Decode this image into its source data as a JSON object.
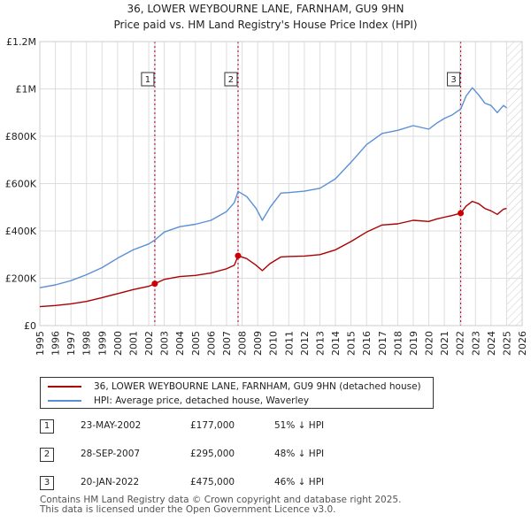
{
  "chart_data": {
    "type": "line",
    "title": "36, LOWER WEYBOURNE LANE, FARNHAM, GU9 9HN",
    "subtitle": "Price paid vs. HM Land Registry's House Price Index (HPI)",
    "xlim": [
      1995,
      2026
    ],
    "ylim": [
      0,
      1200000
    ],
    "x_ticks": [
      1995,
      1996,
      1997,
      1998,
      1999,
      2000,
      2001,
      2002,
      2003,
      2004,
      2005,
      2006,
      2007,
      2008,
      2009,
      2010,
      2011,
      2012,
      2013,
      2014,
      2015,
      2016,
      2017,
      2018,
      2019,
      2020,
      2021,
      2022,
      2023,
      2024,
      2025,
      2026
    ],
    "y_ticks": [
      {
        "value": 0,
        "label": "£0"
      },
      {
        "value": 200000,
        "label": "£200K"
      },
      {
        "value": 400000,
        "label": "£400K"
      },
      {
        "value": 600000,
        "label": "£600K"
      },
      {
        "value": 800000,
        "label": "£800K"
      },
      {
        "value": 1000000,
        "label": "£1M"
      },
      {
        "value": 1200000,
        "label": "£1.2M"
      }
    ],
    "grid": true,
    "shaded_regions": [
      {
        "from": 2002.39,
        "to": 2002.39
      },
      {
        "from": 2007.74,
        "to": 2007.74
      },
      {
        "from": 2022.05,
        "to": 2022.05
      }
    ],
    "future_hatch_from": 2025.0,
    "series": [
      {
        "name": "36, LOWER WEYBOURNE LANE, FARNHAM, GU9 9HN (detached house)",
        "color": "#aa0000",
        "x": [
          1995.0,
          1996.0,
          1997.0,
          1998.0,
          1999.0,
          2000.0,
          2001.0,
          2002.0,
          2002.39,
          2003.0,
          2004.0,
          2005.0,
          2006.0,
          2007.0,
          2007.5,
          2007.74,
          2008.3,
          2008.9,
          2009.3,
          2009.8,
          2010.5,
          2011.0,
          2012.0,
          2013.0,
          2014.0,
          2015.0,
          2016.0,
          2017.0,
          2018.0,
          2019.0,
          2020.0,
          2020.5,
          2021.0,
          2021.5,
          2022.05,
          2022.4,
          2022.8,
          2023.2,
          2023.6,
          2024.0,
          2024.4,
          2024.8,
          2025.0
        ],
        "y": [
          80000,
          85000,
          92000,
          102000,
          118000,
          135000,
          152000,
          166000,
          177000,
          195000,
          207000,
          212000,
          222000,
          240000,
          255000,
          295000,
          283000,
          255000,
          232000,
          262000,
          290000,
          292000,
          294000,
          300000,
          320000,
          355000,
          395000,
          425000,
          430000,
          445000,
          440000,
          450000,
          458000,
          465000,
          475000,
          505000,
          525000,
          515000,
          495000,
          485000,
          470000,
          492000,
          495000
        ]
      },
      {
        "name": "HPI: Average price, detached house, Waverley",
        "color": "#5b8fd4",
        "x": [
          1995.0,
          1996.0,
          1997.0,
          1998.0,
          1999.0,
          2000.0,
          2001.0,
          2002.0,
          2002.39,
          2003.0,
          2004.0,
          2005.0,
          2006.0,
          2007.0,
          2007.5,
          2007.74,
          2008.3,
          2008.9,
          2009.3,
          2009.8,
          2010.5,
          2011.0,
          2012.0,
          2013.0,
          2014.0,
          2015.0,
          2016.0,
          2017.0,
          2018.0,
          2019.0,
          2020.0,
          2020.5,
          2021.0,
          2021.5,
          2022.05,
          2022.4,
          2022.8,
          2023.2,
          2023.6,
          2024.0,
          2024.4,
          2024.8,
          2025.0
        ],
        "y": [
          160000,
          172000,
          190000,
          215000,
          245000,
          285000,
          320000,
          345000,
          361000,
          395000,
          418000,
          428000,
          445000,
          482000,
          520000,
          567000,
          545000,
          495000,
          445000,
          500000,
          560000,
          562000,
          568000,
          580000,
          620000,
          690000,
          765000,
          812000,
          825000,
          845000,
          830000,
          855000,
          875000,
          890000,
          915000,
          970000,
          1005000,
          975000,
          940000,
          930000,
          900000,
          930000,
          920000
        ]
      }
    ],
    "sales": [
      {
        "label": "1",
        "x": 2002.39,
        "y": 177000
      },
      {
        "label": "2",
        "x": 2007.74,
        "y": 295000
      },
      {
        "label": "3",
        "x": 2022.05,
        "y": 475000
      }
    ]
  },
  "legend": {
    "property_label": "36, LOWER WEYBOURNE LANE, FARNHAM, GU9 9HN (detached house)",
    "hpi_label": "HPI: Average price, detached house, Waverley"
  },
  "transactions": [
    {
      "marker": "1",
      "date": "23-MAY-2002",
      "price": "£177,000",
      "hpi": "51% ↓ HPI"
    },
    {
      "marker": "2",
      "date": "28-SEP-2007",
      "price": "£295,000",
      "hpi": "48% ↓ HPI"
    },
    {
      "marker": "3",
      "date": "20-JAN-2022",
      "price": "£475,000",
      "hpi": "46% ↓ HPI"
    }
  ],
  "footer": {
    "line1": "Contains HM Land Registry data © Crown copyright and database right 2025.",
    "line2": "This data is licensed under the Open Government Licence v3.0."
  }
}
